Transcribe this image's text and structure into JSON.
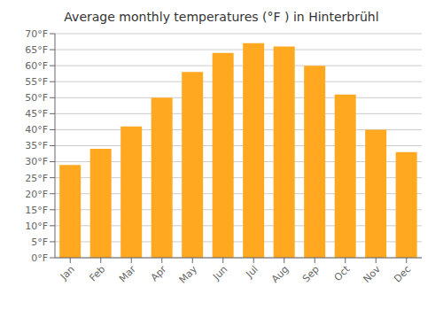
{
  "chart_data": {
    "type": "bar",
    "title": "Average monthly temperatures (°F ) in Hinterbrühl",
    "categories": [
      "Jan",
      "Feb",
      "Mar",
      "Apr",
      "May",
      "Jun",
      "Jul",
      "Aug",
      "Sep",
      "Oct",
      "Nov",
      "Dec"
    ],
    "values": [
      29,
      34,
      41,
      50,
      58,
      64,
      67,
      66,
      60,
      51,
      40,
      33
    ],
    "color": "#FFA820",
    "ylim": [
      0,
      70
    ],
    "yticks": [
      {
        "value": 0,
        "label": "0°F"
      },
      {
        "value": 5,
        "label": "5°F"
      },
      {
        "value": 10,
        "label": "10°F"
      },
      {
        "value": 15,
        "label": "15°F"
      },
      {
        "value": 20,
        "label": "20°F"
      },
      {
        "value": 25,
        "label": "25°F"
      },
      {
        "value": 30,
        "label": "30°F"
      },
      {
        "value": 35,
        "label": "35°F"
      },
      {
        "value": 40,
        "label": "40°F"
      },
      {
        "value": 45,
        "label": "45°F"
      },
      {
        "value": 50,
        "label": "50°F"
      },
      {
        "value": 55,
        "label": "55°F"
      },
      {
        "value": 60,
        "label": "60°F"
      },
      {
        "value": 65,
        "label": "65°F"
      },
      {
        "value": 70,
        "label": "70°F"
      }
    ],
    "grid": true
  }
}
